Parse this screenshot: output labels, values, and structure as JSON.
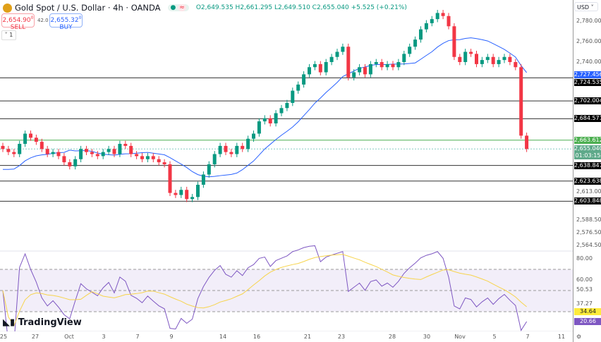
{
  "header": {
    "title": "Gold Spot / U.S. Dollar · 4h · OANDA",
    "ohlc": "O2,649.535 H2,661.295 L2,649.510 C2,655.040 +5.525 (+0.21%)",
    "market_open_icon": "green-dot",
    "indicator_icon": "approx-icon"
  },
  "trade": {
    "sell_price": "2,654.90",
    "sell_sup": "0",
    "sell_label": "SELL",
    "spread": "42.0",
    "buy_price": "2,655.32",
    "buy_sup": "0",
    "buy_label": "BUY"
  },
  "layout_toggle": "˅ 1",
  "axis": {
    "currency": "USD ˅",
    "ticks": [
      "2,780.000",
      "2,760.000",
      "2,740.000",
      "2,588.500",
      "2,576.500",
      "2,564.500",
      "2,613.000"
    ],
    "tags": [
      {
        "v": "2,727.456",
        "c": "#2962ff"
      },
      {
        "v": "2,724.535",
        "c": "#000000"
      },
      {
        "v": "2,702.004",
        "c": "#000000"
      },
      {
        "v": "2,684.571",
        "c": "#000000"
      },
      {
        "v": "2,663.612",
        "c": "#4caf50"
      },
      {
        "v": "2,638.847",
        "c": "#000000"
      },
      {
        "v": "2,623.638",
        "c": "#000000"
      },
      {
        "v": "2,603.848",
        "c": "#000000"
      }
    ],
    "last_price": "2,655.040",
    "countdown": "01:03:15",
    "rsi_ticks": [
      "80.00",
      "60.00",
      "50.53",
      "37.27"
    ],
    "rsi_tags": [
      {
        "v": "34.64",
        "c": "#ffeb3b",
        "t": "#131722"
      },
      {
        "v": "20.66",
        "c": "#7e57c2",
        "t": "#ffffff"
      }
    ],
    "settings_icon": "gear-icon"
  },
  "time_labels": [
    "25",
    "27",
    "Oct",
    "3",
    "7",
    "9",
    "14",
    "16",
    "21",
    "23",
    "28",
    "30",
    "Nov",
    "5",
    "7",
    "11"
  ],
  "brand": "TradingView",
  "chart_data": {
    "type": "candlestick",
    "symbol": "XAUUSD",
    "interval": "4h",
    "ylim": [
      2555,
      2795
    ],
    "horizontal_levels": [
      2724.535,
      2702.004,
      2684.571,
      2663.612,
      2638.847,
      2623.638,
      2603.848
    ],
    "closes": [
      2655,
      2652,
      2650,
      2660,
      2670,
      2666,
      2662,
      2655,
      2650,
      2652,
      2648,
      2642,
      2638,
      2645,
      2655,
      2652,
      2650,
      2648,
      2652,
      2655,
      2650,
      2660,
      2658,
      2650,
      2648,
      2645,
      2648,
      2645,
      2642,
      2640,
      2612,
      2610,
      2615,
      2606,
      2608,
      2620,
      2630,
      2640,
      2650,
      2658,
      2652,
      2650,
      2658,
      2655,
      2665,
      2670,
      2682,
      2685,
      2680,
      2690,
      2695,
      2700,
      2712,
      2718,
      2728,
      2735,
      2738,
      2730,
      2740,
      2745,
      2750,
      2755,
      2725,
      2730,
      2735,
      2728,
      2738,
      2740,
      2735,
      2738,
      2735,
      2740,
      2748,
      2755,
      2762,
      2772,
      2778,
      2782,
      2788,
      2785,
      2775,
      2745,
      2740,
      2750,
      2748,
      2738,
      2742,
      2745,
      2738,
      2742,
      2745,
      2740,
      2735,
      2668,
      2655
    ],
    "up_color": "#089981",
    "down_color": "#f23645",
    "ma_color": "#2962ff",
    "rsi": {
      "last": 20.66,
      "ma_last": 34.64,
      "levels": [
        70,
        50,
        30
      ],
      "line_color": "#7e57c2",
      "ma_color": "#f7d44c"
    }
  }
}
